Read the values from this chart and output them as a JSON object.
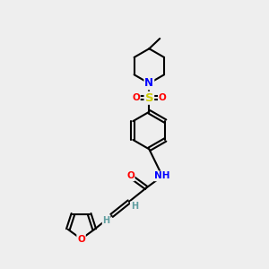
{
  "background_color": "#eeeeee",
  "bond_color": "#000000",
  "atom_colors": {
    "N": "#0000FF",
    "O": "#FF0000",
    "S": "#cccc00",
    "C": "#000000",
    "H": "#5f9ea0"
  }
}
